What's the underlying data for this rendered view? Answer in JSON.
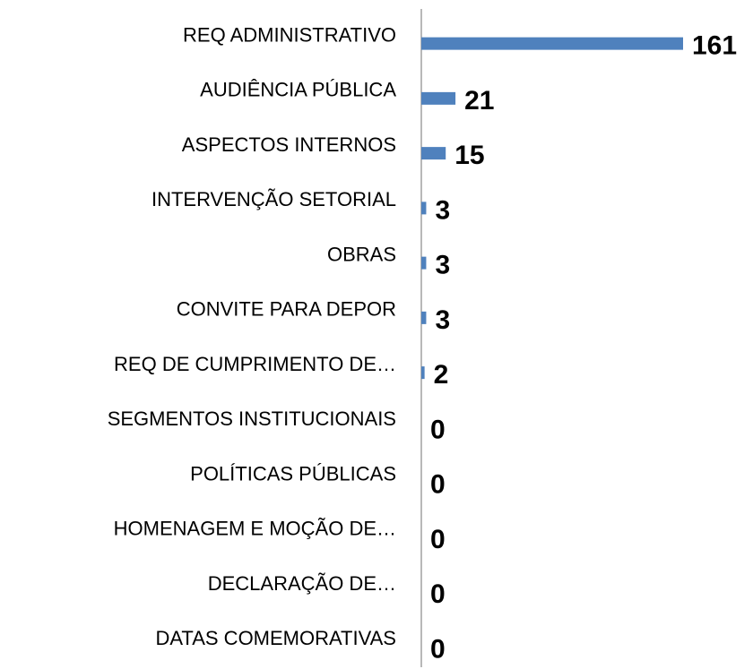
{
  "chart_data": {
    "type": "bar",
    "orientation": "horizontal",
    "categories": [
      "REQ ADMINISTRATIVO",
      "AUDIÊNCIA PÚBLICA",
      "ASPECTOS INTERNOS",
      "INTERVENÇÃO SETORIAL",
      "OBRAS",
      "CONVITE PARA DEPOR",
      "REQ DE CUMPRIMENTO DE…",
      "SEGMENTOS INSTITUCIONAIS",
      "POLÍTICAS PÚBLICAS",
      "HOMENAGEM E MOÇÃO DE…",
      "DECLARAÇÃO DE…",
      "DATAS COMEMORATIVAS"
    ],
    "values": [
      161,
      21,
      15,
      3,
      3,
      3,
      2,
      0,
      0,
      0,
      0,
      0
    ],
    "color": "#4f81bd"
  }
}
